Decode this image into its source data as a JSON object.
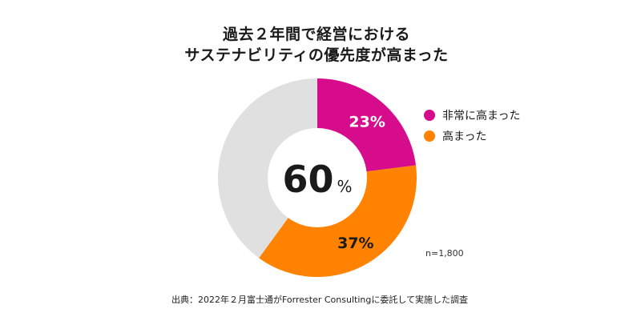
{
  "chart_data": {
    "type": "pie",
    "title_lines": [
      "過去２年間で経営における",
      "サステナビリティの優先度が高まった"
    ],
    "center_label": {
      "value": "60",
      "unit": "%"
    },
    "slices": [
      {
        "name": "非常に高まった",
        "value": 23,
        "label": "23%",
        "color": "#d70c8c"
      },
      {
        "name": "高まった",
        "value": 37,
        "label": "37%",
        "color": "#ff8200"
      },
      {
        "name": "",
        "value": 40,
        "label": "",
        "color": "#e0e0e0"
      }
    ],
    "legend": [
      {
        "label": "非常に高まった",
        "color": "#d70c8c"
      },
      {
        "label": "高まった",
        "color": "#ff8200"
      }
    ],
    "legend_position": "right",
    "sample_size": "n=1,800"
  },
  "source_note": "出典：2022年２月富士通がForrester Consultingに委託して実施した調査"
}
